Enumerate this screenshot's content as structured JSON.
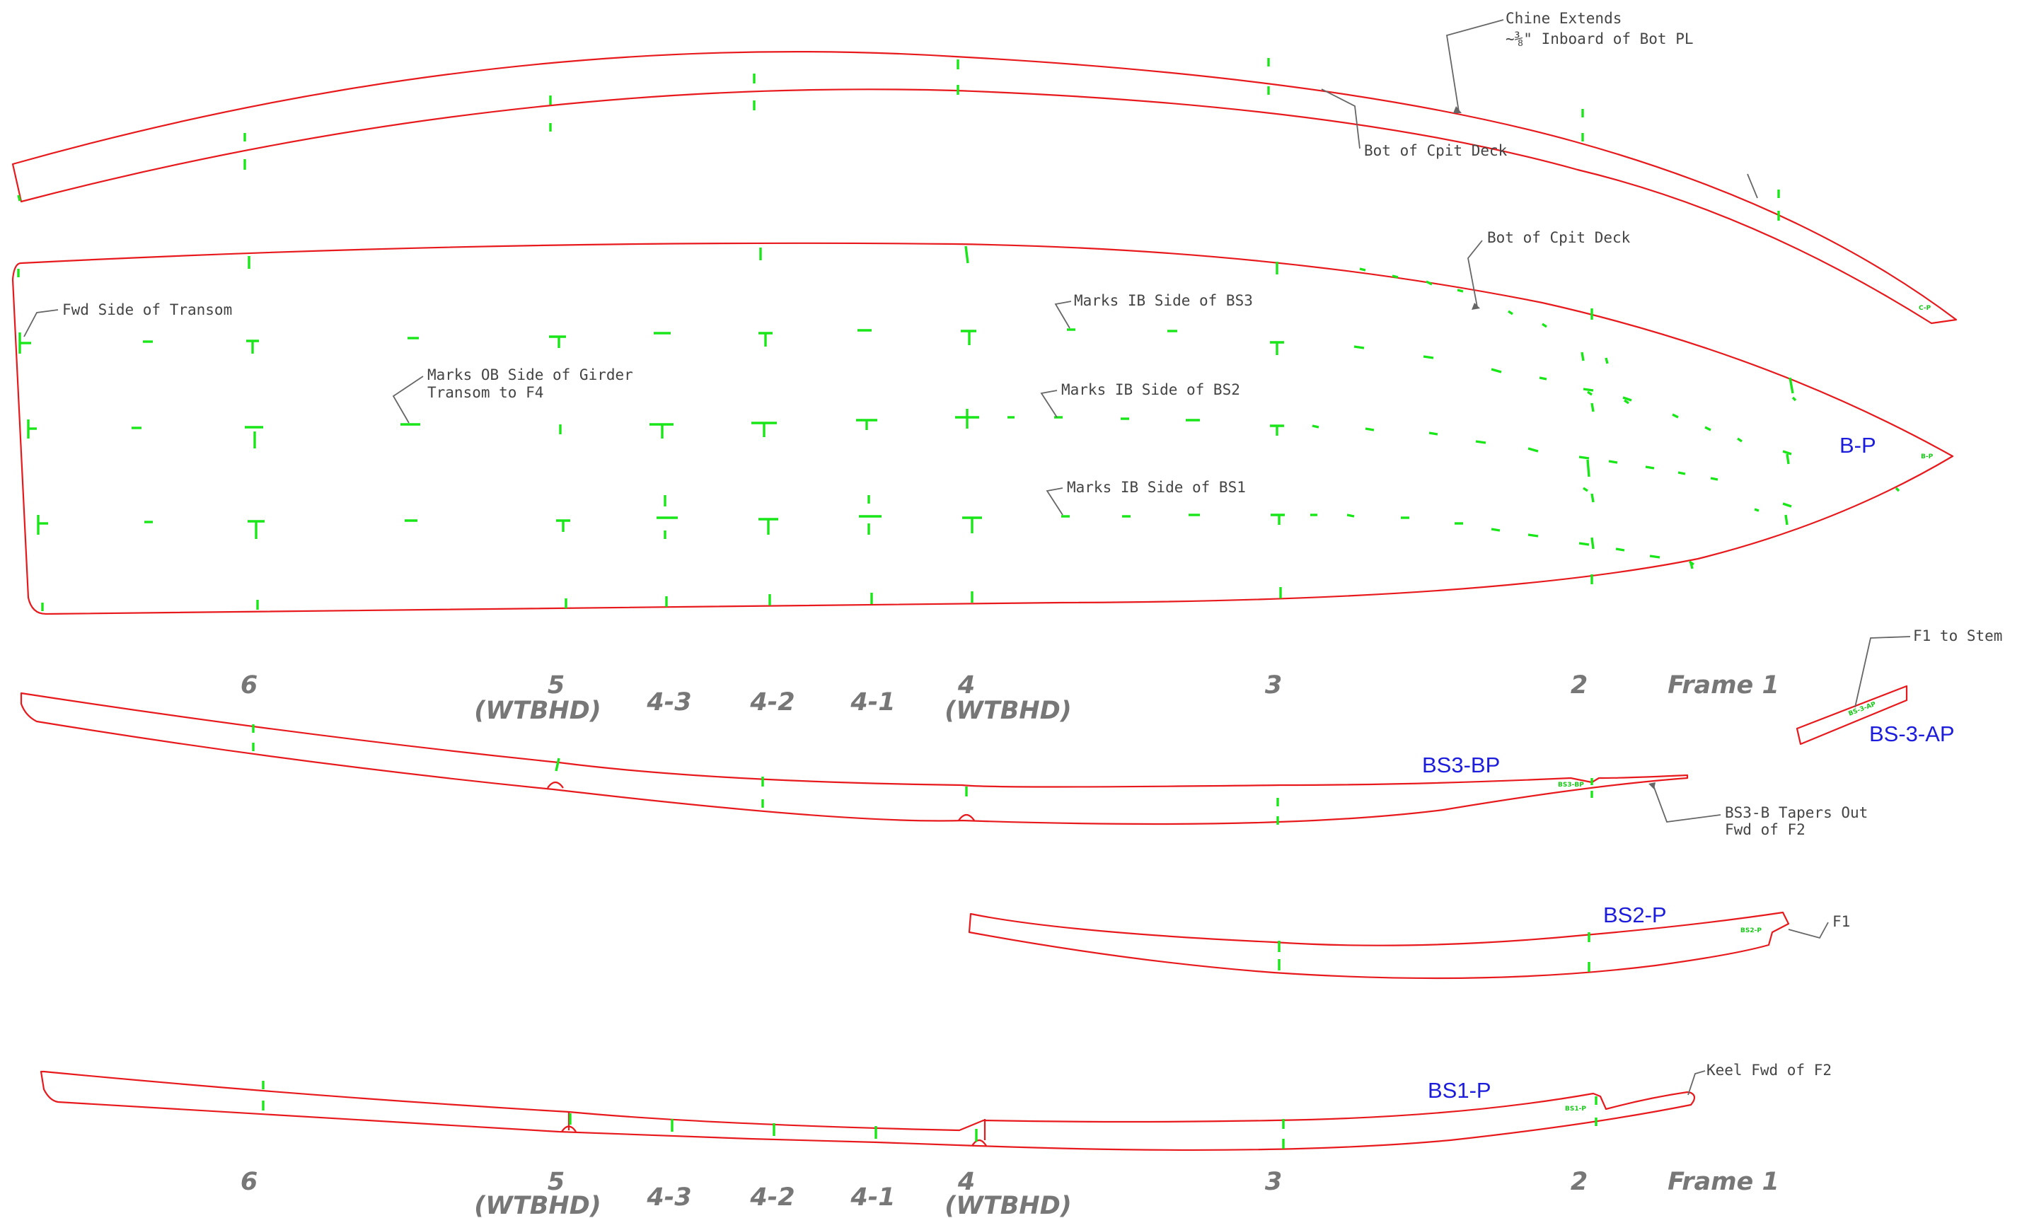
{
  "drawing": {
    "parts": {
      "chine": {
        "label": "C-P"
      },
      "bottom": {
        "label": "B-P",
        "tag": "B-P"
      },
      "bs3": {
        "label": "BS3-BP",
        "tag": "BS3-BP"
      },
      "bs2": {
        "label": "BS2-P",
        "tag": "BS2-P"
      },
      "bs1": {
        "label": "BS1-P",
        "tag": "BS1-P"
      },
      "bs3a": {
        "label": "BS-3-AP",
        "tag": "BS-3-AP"
      }
    },
    "notes": {
      "chine_extends_1": "Chine Extends",
      "chine_extends_2": "~⅜\" Inboard of Bot PL",
      "bot_cpit_deck_1": "Bot of Cpit Deck",
      "bot_cpit_deck_2": "Bot of Cpit Deck",
      "fwd_side_transom": "Fwd Side of Transom",
      "marks_ib_bs3": "Marks IB Side of BS3",
      "marks_ob_girder_1": "Marks OB Side of Girder",
      "marks_ob_girder_2": "Transom to F4",
      "marks_ib_bs2": "Marks IB Side of BS2",
      "marks_ib_bs1": "Marks IB Side of BS1",
      "f1_to_stem": "F1 to Stem",
      "bs3_tapers_1": "BS3-B Tapers Out",
      "bs3_tapers_2": "Fwd of F2",
      "f1": "F1",
      "keel_fwd_f2": "Keel Fwd of F2"
    },
    "frames_top": [
      {
        "label": "6",
        "sub": ""
      },
      {
        "label": "5",
        "sub": "(WTBHD)"
      },
      {
        "label": "4-3",
        "sub": ""
      },
      {
        "label": "4-2",
        "sub": ""
      },
      {
        "label": "4-1",
        "sub": ""
      },
      {
        "label": "4",
        "sub": "(WTBHD)"
      },
      {
        "label": "3",
        "sub": ""
      },
      {
        "label": "2",
        "sub": ""
      },
      {
        "label": "Frame 1",
        "sub": ""
      }
    ],
    "frames_bottom": [
      {
        "label": "6",
        "sub": ""
      },
      {
        "label": "5",
        "sub": "(WTBHD)"
      },
      {
        "label": "4-3",
        "sub": ""
      },
      {
        "label": "4-2",
        "sub": ""
      },
      {
        "label": "4-1",
        "sub": ""
      },
      {
        "label": "4",
        "sub": "(WTBHD)"
      },
      {
        "label": "3",
        "sub": ""
      },
      {
        "label": "2",
        "sub": ""
      },
      {
        "label": "Frame 1",
        "sub": ""
      }
    ],
    "colors": {
      "part_outline": "#e8191c",
      "station_marks": "#19e619",
      "part_label": "#1c1cdc",
      "note_text": "#444444",
      "frame_label": "#777777"
    }
  }
}
